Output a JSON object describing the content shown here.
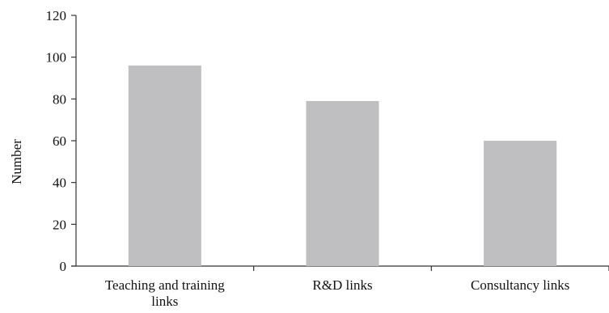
{
  "chart_data": {
    "type": "bar",
    "categories": [
      "Teaching and training links",
      "R&D links",
      "Consultancy links"
    ],
    "category_lines": [
      [
        "Teaching and training",
        "links"
      ],
      [
        "R&D links"
      ],
      [
        "Consultancy links"
      ]
    ],
    "values": [
      96,
      79,
      60
    ],
    "title": "",
    "xlabel": "",
    "ylabel": "Number",
    "ylim": [
      0,
      120
    ],
    "yticks": [
      0,
      20,
      40,
      60,
      80,
      100,
      120
    ],
    "grid": false,
    "legend": "none",
    "colors": {
      "bar": "#bfbfc1",
      "axis": "#333333",
      "text": "#111111"
    }
  }
}
